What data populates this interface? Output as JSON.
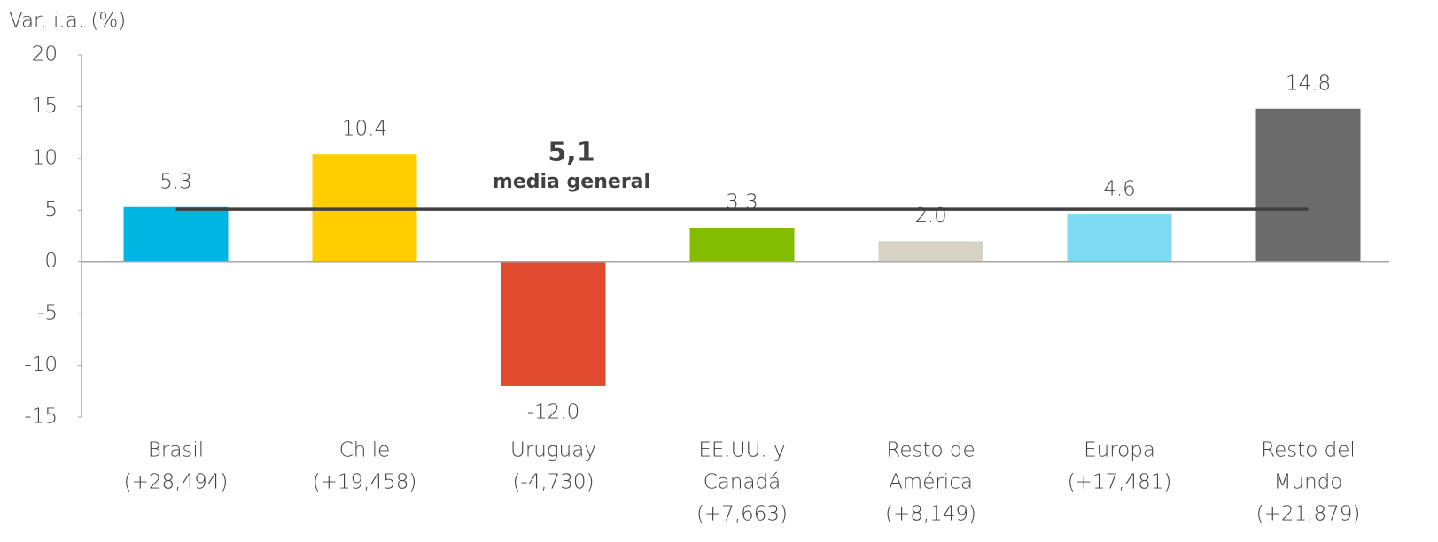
{
  "chart_data": {
    "type": "bar",
    "y_label": "Var. i.a. (%)",
    "categories": [
      [
        "Brasil",
        "(+28,494)"
      ],
      [
        "Chile",
        "(+19,458)"
      ],
      [
        "Uruguay",
        "(-4,730)"
      ],
      [
        "EE.UU. y",
        "Canadá",
        "(+7,663)"
      ],
      [
        "Resto de",
        "América",
        "(+8,149)"
      ],
      [
        "Europa",
        "(+17,481)"
      ],
      [
        "Resto del",
        "Mundo",
        "(+21,879)"
      ]
    ],
    "values": [
      5.3,
      10.4,
      -12.0,
      3.3,
      2.0,
      4.6,
      14.8
    ],
    "value_labels": [
      "5.3",
      "10.4",
      "-12.0",
      "3.3",
      "2.0",
      "4.6",
      "14.8"
    ],
    "colors": [
      "#00b5e2",
      "#ffcd00",
      "#e04a2f",
      "#84bd00",
      "#d6d2c4",
      "#7fdbf1",
      "#6b6b6b"
    ],
    "ylim": [
      -15,
      20
    ],
    "yticks": [
      -15,
      -10,
      -5,
      0,
      5,
      10,
      15,
      20
    ],
    "mean_line": {
      "value": 5.1,
      "label": "5,1",
      "sublabel": "media general",
      "color": "#404040"
    }
  }
}
